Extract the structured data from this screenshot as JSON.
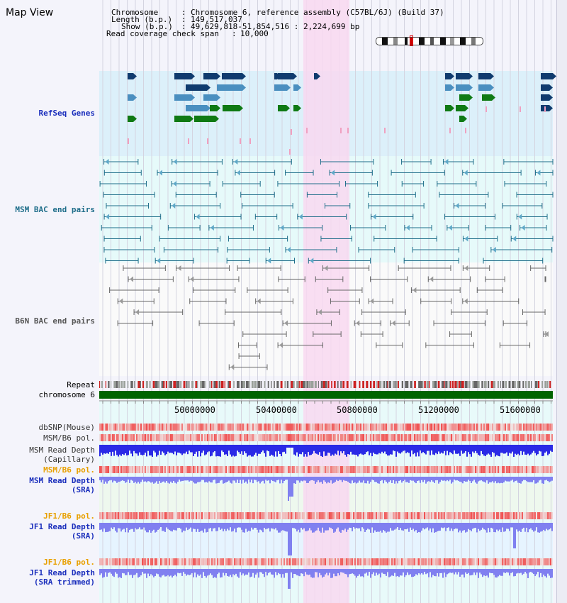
{
  "page": {
    "title": "Map View"
  },
  "header": {
    "chromosome_label": "Chromosome",
    "chromosome_value": "Chromosome 6, reference assembly (C57BL/6J) (Build 37)",
    "length_label": "Length (b.p.)",
    "length_value": "149,517,037",
    "show_label": "Show (b.p.)",
    "show_value": "49,629,818-51,854,516 : 2,224,699 bp",
    "coverage_label": "Read coverage check span",
    "coverage_value": "10,000"
  },
  "tracks": {
    "refseq": "RefSeq Genes",
    "msm_bac": "MSM BAC end pairs",
    "b6n_bac": "B6N BAC end pairs",
    "repeat": "Repeat",
    "chromosome": "chromosome 6",
    "dbsnp": "dbSNP(Mouse)",
    "msm_b6_pol_1": "MSM/B6 pol.",
    "msm_depth_cap_1": "MSM Read Depth",
    "msm_depth_cap_2": "(Capillary)",
    "msm_b6_pol_2": "MSM/B6 pol.",
    "msm_depth_sra_1": "MSM Read Depth",
    "msm_depth_sra_2": "(SRA)",
    "jf1_b6_pol_1": "JF1/B6 pol.",
    "jf1_depth_sra_1": "JF1 Read Depth",
    "jf1_depth_sra_2": "(SRA)",
    "jf1_b6_pol_2": "JF1/B6 pol.",
    "jf1_depth_trim_1": "JF1 Read Depth",
    "jf1_depth_trim_2": "(SRA trimmed)"
  },
  "axis": {
    "ticks": [
      "50000000",
      "50400000",
      "50800000",
      "51200000",
      "51600000"
    ]
  },
  "colors": {
    "highlight": "#f8d8f0",
    "refseq_bg": "#dcf0fa",
    "msm_bg": "#e6fafa",
    "gene_dark": "#0f3b6e",
    "gene_mid": "#4a8fc0",
    "gene_green": "#0f7a14",
    "msm_line": "#1f6e8a",
    "b6n_line": "#666666",
    "chromosome": "#006400",
    "depth_blue": "#2a2ae6",
    "depth_light": "#8080f0"
  }
}
